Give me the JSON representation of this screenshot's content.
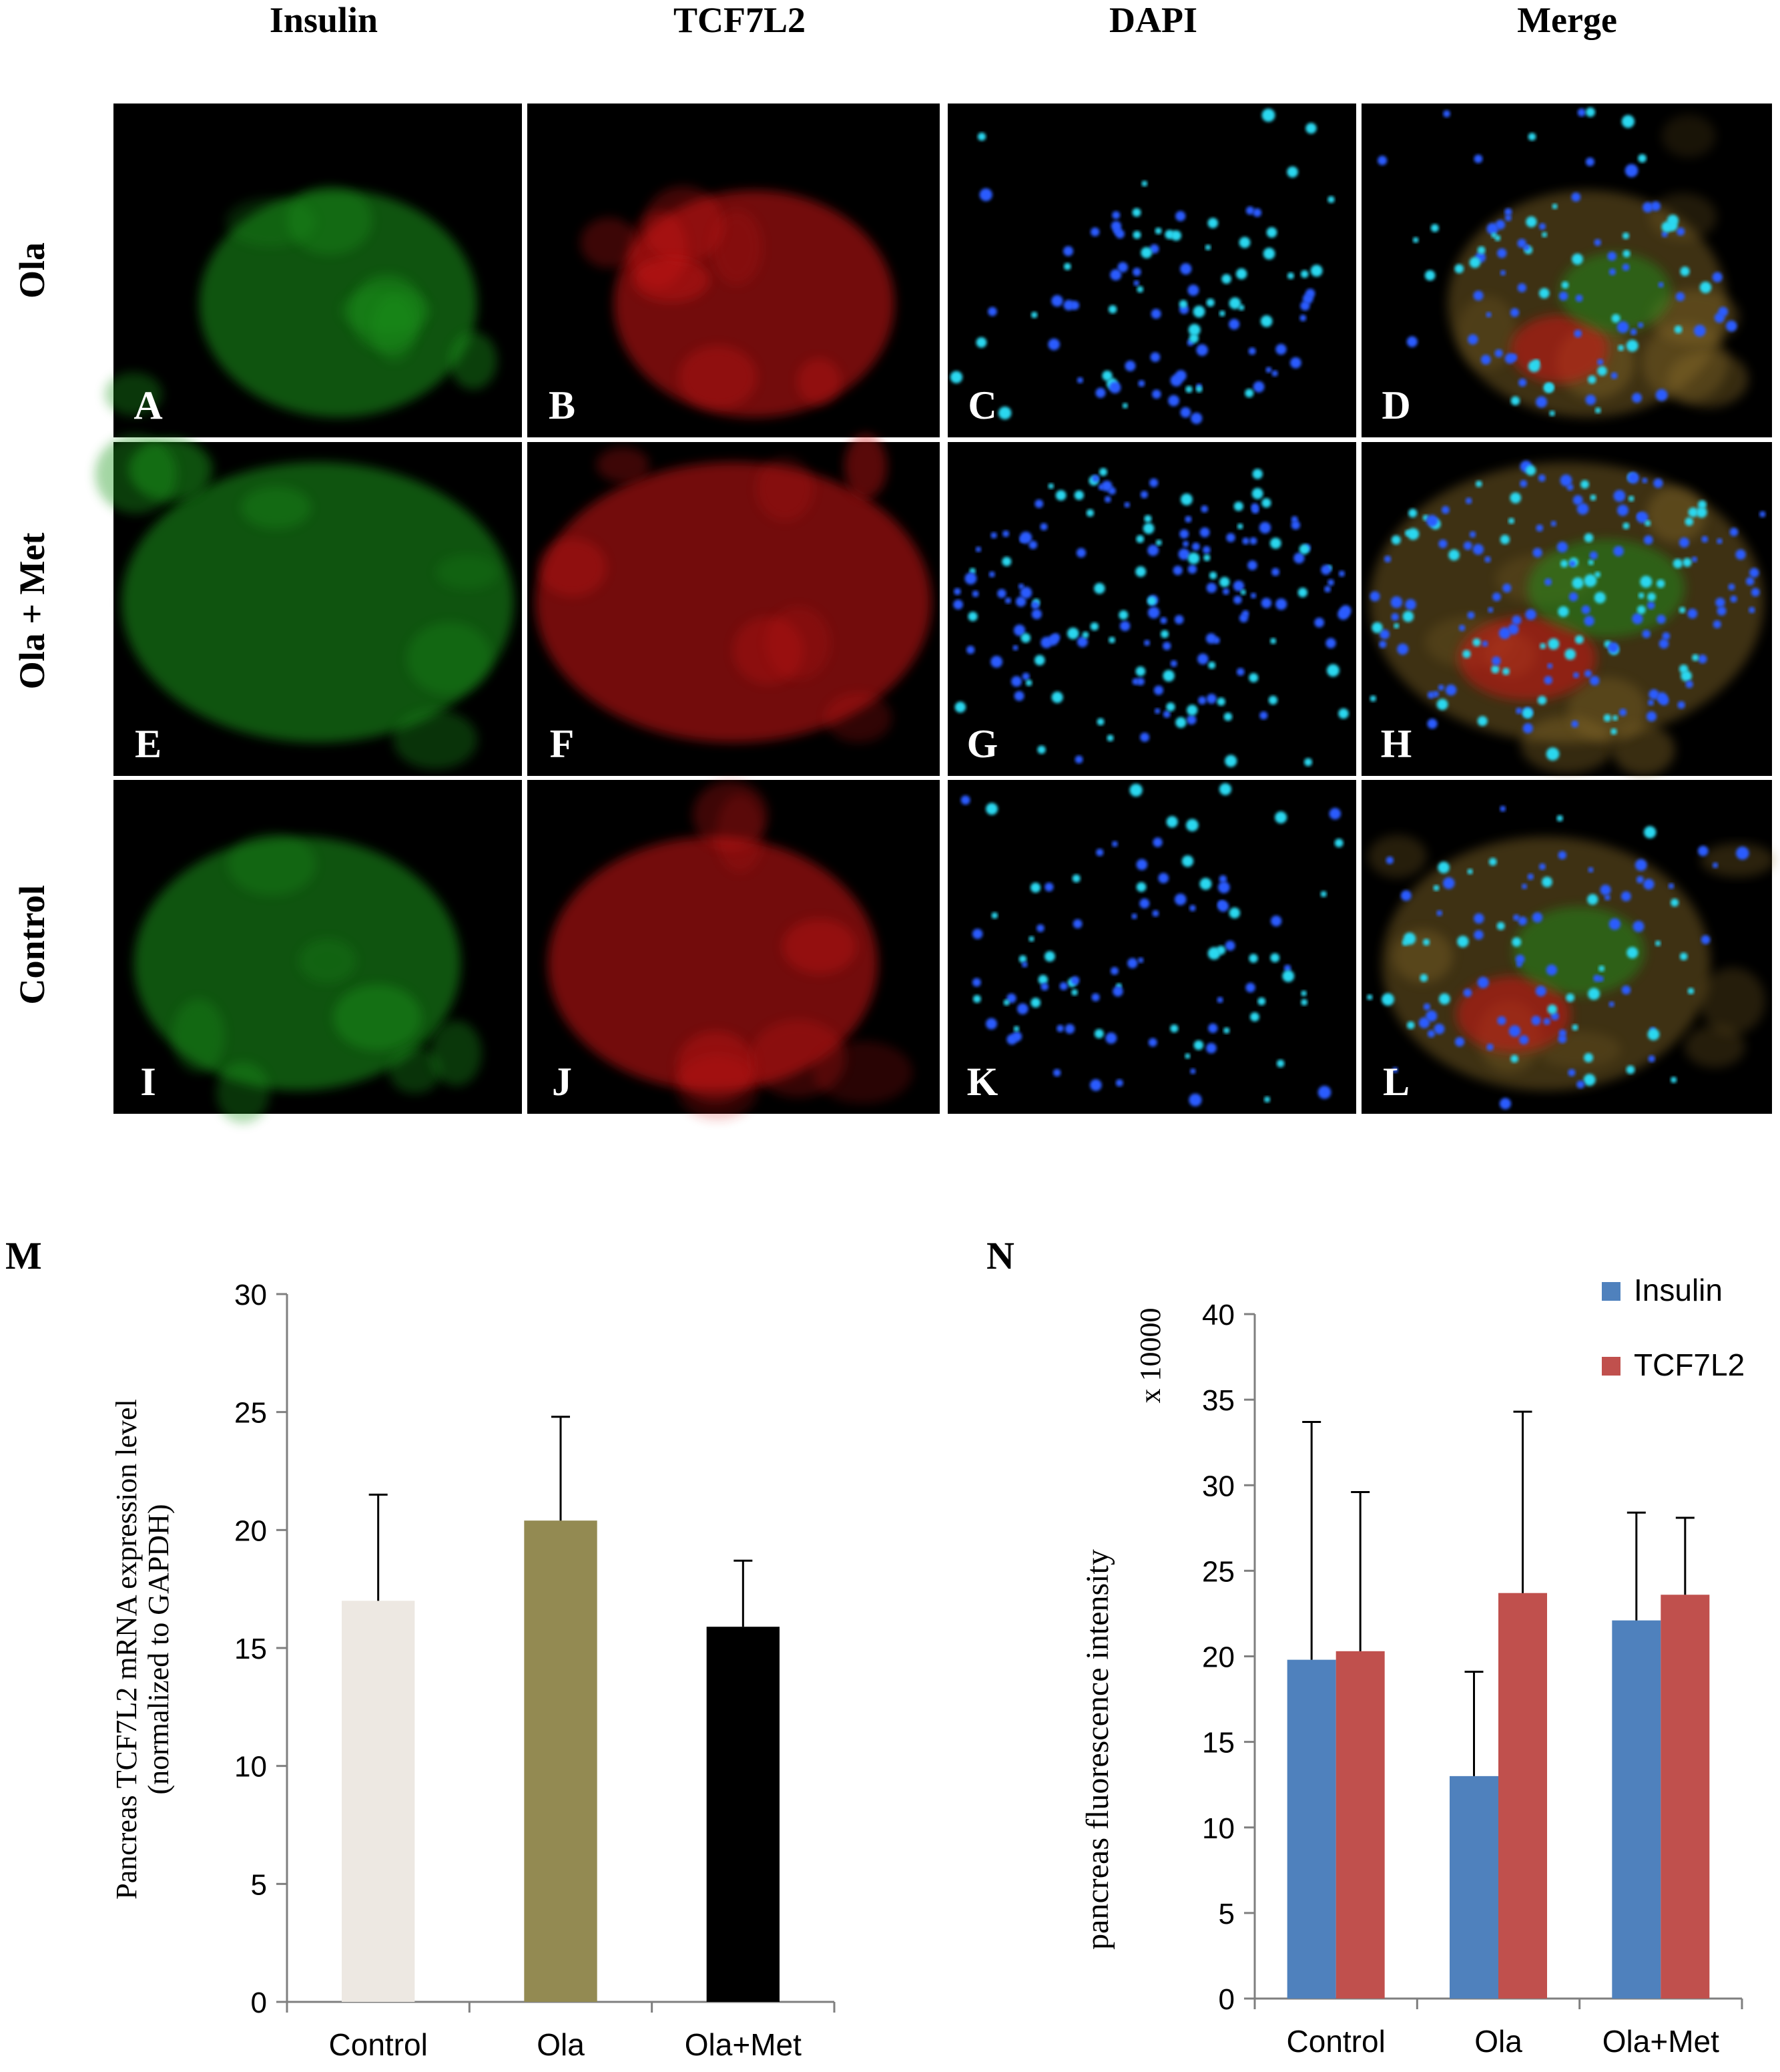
{
  "micrographs": {
    "columns": [
      "Insulin",
      "TCF7L2",
      "DAPI",
      "Merge"
    ],
    "rows": [
      "Ola",
      "Ola + Met",
      "Control"
    ],
    "panel_letters": [
      [
        "A",
        "B",
        "C",
        "D"
      ],
      [
        "E",
        "F",
        "G",
        "H"
      ],
      [
        "I",
        "J",
        "K",
        "L"
      ]
    ],
    "stain_colors": {
      "Insulin": "#1f9a1f",
      "TCF7L2": "#d21818",
      "DAPI": "#2a5cff",
      "Merge": "#8a6d2a"
    }
  },
  "chart_data": [
    {
      "panel": "M",
      "type": "bar",
      "categories": [
        "Control",
        "Ola",
        "Ola+Met"
      ],
      "values": [
        17.0,
        20.4,
        15.9
      ],
      "errors": [
        4.5,
        4.4,
        2.8
      ],
      "colors": [
        "#ede8e2",
        "#938a52",
        "#000000"
      ],
      "ylabel_lines": [
        "Pancreas TCF7L2 mRNA expression level",
        "(normalized to GAPDH)"
      ],
      "ylim": [
        0,
        30
      ],
      "yticks": [
        "0",
        "5",
        "10",
        "15",
        "20",
        "25",
        "30"
      ],
      "grid": false
    },
    {
      "panel": "N",
      "type": "bar",
      "categories": [
        "Control",
        "Ola",
        "Ola+Met"
      ],
      "series": [
        {
          "name": "Insulin",
          "color": "#4f81bd",
          "values": [
            19.8,
            13.0,
            22.1
          ],
          "errors": [
            13.9,
            6.1,
            6.3
          ]
        },
        {
          "name": "TCF7L2",
          "color": "#c0504d",
          "values": [
            20.3,
            23.7,
            23.6
          ],
          "errors": [
            9.3,
            10.6,
            4.5
          ]
        }
      ],
      "ylabel": "pancreas fluorescence intensity",
      "multiplier_label": "x 10000",
      "ylim": [
        0,
        40
      ],
      "yticks": [
        "0",
        "5",
        "10",
        "15",
        "20",
        "25",
        "30",
        "35",
        "40"
      ],
      "legend_position": "top-right",
      "grid": false
    }
  ]
}
